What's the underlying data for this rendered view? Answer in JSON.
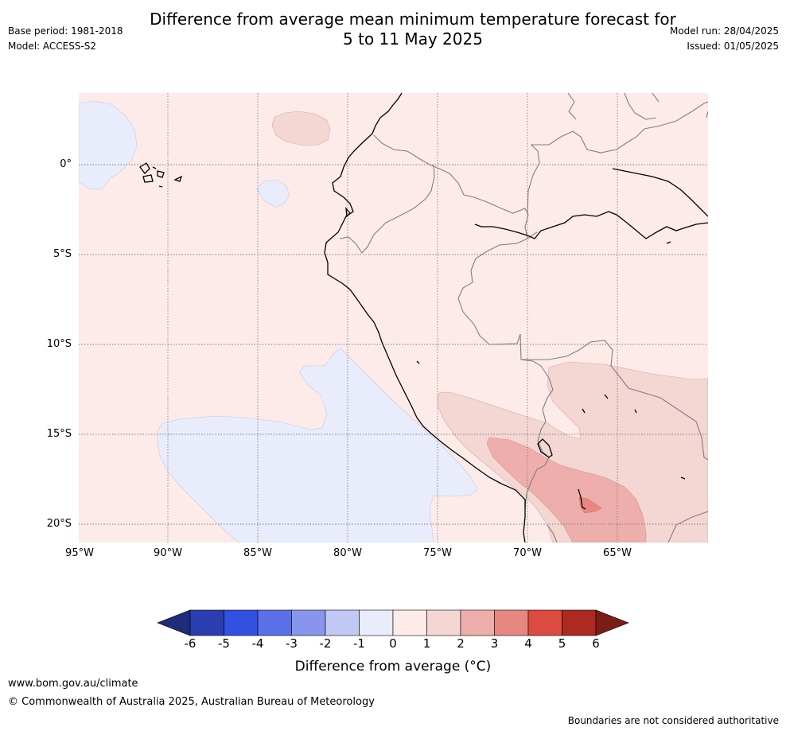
{
  "header": {
    "title_line1": "Difference from average mean minimum temperature forecast for",
    "title_line2": "5 to 11 May 2025",
    "base_period": "Base period: 1981-2018",
    "model": "Model: ACCESS-S2",
    "model_run": "Model run: 28/04/2025",
    "issued": "Issued: 01/05/2025"
  },
  "map": {
    "lat_labels": [
      "0°",
      "5°S",
      "10°S",
      "15°S",
      "20°S"
    ],
    "lon_labels": [
      "95°W",
      "90°W",
      "85°W",
      "80°W",
      "75°W",
      "70°W",
      "65°W"
    ],
    "colors": {
      "ocean_land_anomaly_0_1": "#fcebe9",
      "anomaly_1_2": "#f4d6d3",
      "anomaly_2_3": "#eeaeab",
      "anomaly_3_4": "#e88780",
      "anomaly_neg1_0": "#e8ecfb",
      "coastline": "#000000",
      "borders": "#808080",
      "gridlines": "#808080"
    }
  },
  "colorbar": {
    "tick_labels": [
      "-6",
      "-5",
      "-4",
      "-3",
      "-2",
      "-1",
      "0",
      "1",
      "2",
      "3",
      "4",
      "5",
      "6"
    ],
    "colors": [
      "#1e2c7a",
      "#2a3db1",
      "#3450e0",
      "#5a70e6",
      "#8796ec",
      "#c2c9f5",
      "#e8ecfb",
      "#fcebe9",
      "#f4d6d3",
      "#eeaeab",
      "#e88780",
      "#dc4b40",
      "#ac2a22",
      "#7a1d17"
    ],
    "label": "Difference from average (°C)"
  },
  "footer": {
    "url": "www.bom.gov.au/climate",
    "copyright": "© Commonwealth of Australia 2025, Australian Bureau of Meteorology",
    "disclaimer": "Boundaries are not considered authoritative"
  }
}
